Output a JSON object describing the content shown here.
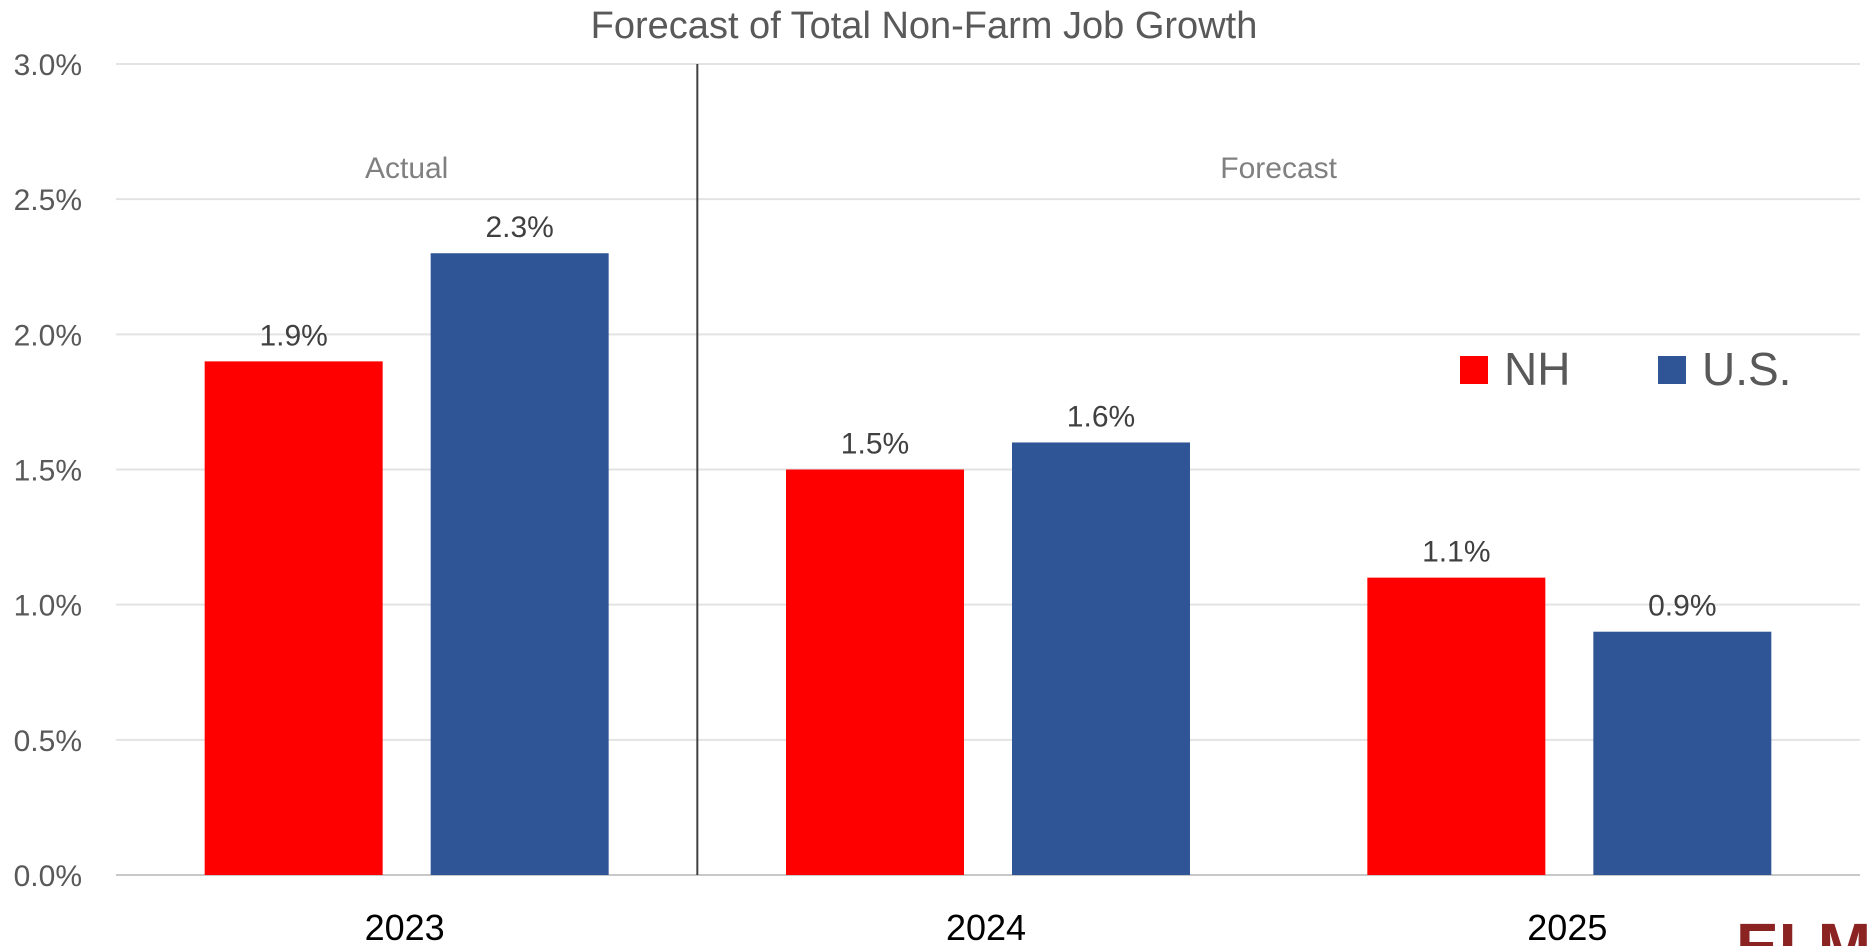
{
  "chart_data": {
    "type": "bar",
    "title": "Forecast of Total Non-Farm Job Growth",
    "categories": [
      "2023",
      "2024",
      "2025"
    ],
    "series": [
      {
        "name": "NH",
        "values": [
          1.9,
          1.5,
          1.1
        ],
        "labels": [
          "1.9%",
          "1.5%",
          "1.1%"
        ],
        "color": "#ff0000"
      },
      {
        "name": "U.S.",
        "values": [
          2.3,
          1.6,
          0.9
        ],
        "labels": [
          "2.3%",
          "1.6%",
          "0.9%"
        ],
        "color": "#2f5597"
      }
    ],
    "ylim": [
      0,
      3.0
    ],
    "yticks": [
      0,
      0.5,
      1.0,
      1.5,
      2.0,
      2.5,
      3.0
    ],
    "ytick_labels": [
      "0.0%",
      "0.5%",
      "1.0%",
      "1.5%",
      "2.0%",
      "2.5%",
      "3.0%"
    ],
    "grid": true,
    "legend_position": "right",
    "annotations": [
      {
        "text": "Actual",
        "x": 0
      },
      {
        "text": "Forecast",
        "x": 1.5
      }
    ],
    "divider_between_categories": [
      0,
      1
    ]
  },
  "logo": {
    "text": "ELM",
    "color": "#8b2323"
  }
}
